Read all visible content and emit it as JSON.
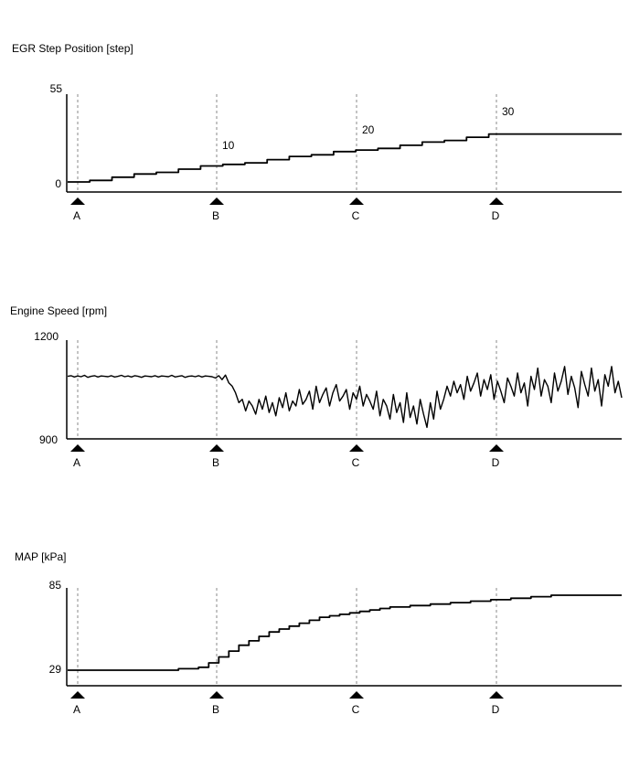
{
  "chart_data": [
    {
      "type": "line",
      "title": "EGR Step Position [step]",
      "ylim": [
        0,
        55
      ],
      "yticks": [
        "55",
        "0"
      ],
      "markers": [
        "A",
        "B",
        "C",
        "D"
      ],
      "annotations": [
        {
          "at": "B",
          "text": "10"
        },
        {
          "at": "C",
          "text": "20"
        },
        {
          "at": "D",
          "text": "30"
        }
      ],
      "series": [
        {
          "values": [
            0,
            1,
            3,
            5,
            6,
            8,
            10,
            11,
            12,
            14,
            16,
            17,
            19,
            20,
            21,
            23,
            25,
            26,
            28,
            30,
            30,
            30,
            30,
            30,
            30,
            30
          ]
        }
      ]
    },
    {
      "type": "line",
      "title": "Engine Speed [rpm]",
      "ylim": [
        900,
        1200
      ],
      "yticks": [
        "1200",
        "900"
      ],
      "markers": [
        "A",
        "B",
        "C",
        "D"
      ],
      "series": [
        {
          "values": [
            1090,
            1092,
            1088,
            1091,
            1089,
            1093,
            1087,
            1090,
            1092,
            1088,
            1091,
            1090,
            1089,
            1092,
            1088,
            1090,
            1093,
            1089,
            1091,
            1088,
            1092,
            1090,
            1087,
            1091,
            1090,
            1089,
            1092,
            1088,
            1091,
            1090,
            1089,
            1093,
            1088,
            1090,
            1092,
            1087,
            1090,
            1091,
            1089,
            1092,
            1088,
            1091,
            1090,
            1089,
            1085,
            1092,
            1080,
            1094,
            1070,
            1060,
            1040,
            1010,
            1020,
            985,
            1015,
            1000,
            975,
            1020,
            990,
            1030,
            980,
            1010,
            970,
            1025,
            995,
            1040,
            985,
            1015,
            1000,
            1050,
            1005,
            1020,
            1045,
            990,
            1060,
            1010,
            1035,
            1055,
            1000,
            1040,
            1065,
            1015,
            1030,
            1050,
            990,
            1040,
            1020,
            1060,
            1000,
            1035,
            1015,
            990,
            1045,
            970,
            1020,
            1000,
            960,
            1035,
            980,
            1010,
            950,
            1040,
            965,
            1000,
            945,
            1020,
            975,
            935,
            1010,
            960,
            1045,
            990,
            1020,
            1060,
            1030,
            1075,
            1040,
            1065,
            1020,
            1090,
            1045,
            1070,
            1100,
            1030,
            1080,
            1050,
            1095,
            1020,
            1075,
            1045,
            1010,
            1085,
            1060,
            1030,
            1100,
            1040,
            1070,
            1000,
            1090,
            1050,
            1115,
            1030,
            1080,
            1060,
            1010,
            1100,
            1045,
            1075,
            1120,
            1035,
            1090,
            1055,
            995,
            1105,
            1065,
            1030,
            1115,
            1045,
            1080,
            1000,
            1095,
            1060,
            1120,
            1040,
            1075,
            1025
          ]
        }
      ]
    },
    {
      "type": "line",
      "title": "MAP [kPa]",
      "ylim": [
        29,
        85
      ],
      "yticks": [
        "85",
        "29"
      ],
      "markers": [
        "A",
        "B",
        "C",
        "D"
      ],
      "series": [
        {
          "values": [
            29,
            29,
            29,
            29,
            29,
            29,
            29,
            29,
            29,
            29,
            29,
            30,
            30,
            31,
            34,
            38,
            42,
            46,
            49,
            52,
            55,
            57,
            59,
            61,
            63,
            65,
            66,
            67,
            68,
            69,
            70,
            71,
            72,
            72,
            73,
            73,
            74,
            74,
            75,
            75,
            76,
            76,
            77,
            77,
            78,
            78,
            79,
            79,
            80,
            80,
            80,
            80,
            80,
            80,
            80,
            80
          ]
        }
      ]
    }
  ]
}
